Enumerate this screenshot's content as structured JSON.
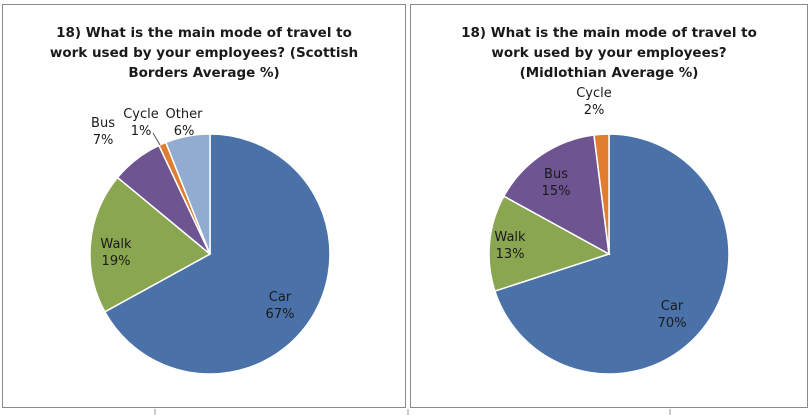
{
  "chart_data": [
    {
      "type": "pie",
      "title_lines": [
        "18) What is the main mode of travel to",
        "work used by your employees? (Scottish",
        "Borders Average %)"
      ],
      "slices": [
        {
          "label": "Car",
          "value": 67,
          "value_label": "67%",
          "color": "#4a72a8"
        },
        {
          "label": "Walk",
          "value": 19,
          "value_label": "19%",
          "color": "#8aa650"
        },
        {
          "label": "Bus",
          "value": 7,
          "value_label": "7%",
          "color": "#6e5592"
        },
        {
          "label": "Cycle",
          "value": 1,
          "value_label": "1%",
          "color": "#e07d30"
        },
        {
          "label": "Other",
          "value": 6,
          "value_label": "6%",
          "color": "#92abd0"
        }
      ]
    },
    {
      "type": "pie",
      "title_lines": [
        "18) What is the main mode of travel to",
        "work used by your employees?",
        "(Midlothian Average %)"
      ],
      "slices": [
        {
          "label": "Car",
          "value": 70,
          "value_label": "70%",
          "color": "#4a72a8"
        },
        {
          "label": "Walk",
          "value": 13,
          "value_label": "13%",
          "color": "#8aa650"
        },
        {
          "label": "Bus",
          "value": 15,
          "value_label": "15%",
          "color": "#6e5592"
        },
        {
          "label": "Cycle",
          "value": 2,
          "value_label": "2%",
          "color": "#e07d30"
        }
      ]
    }
  ]
}
